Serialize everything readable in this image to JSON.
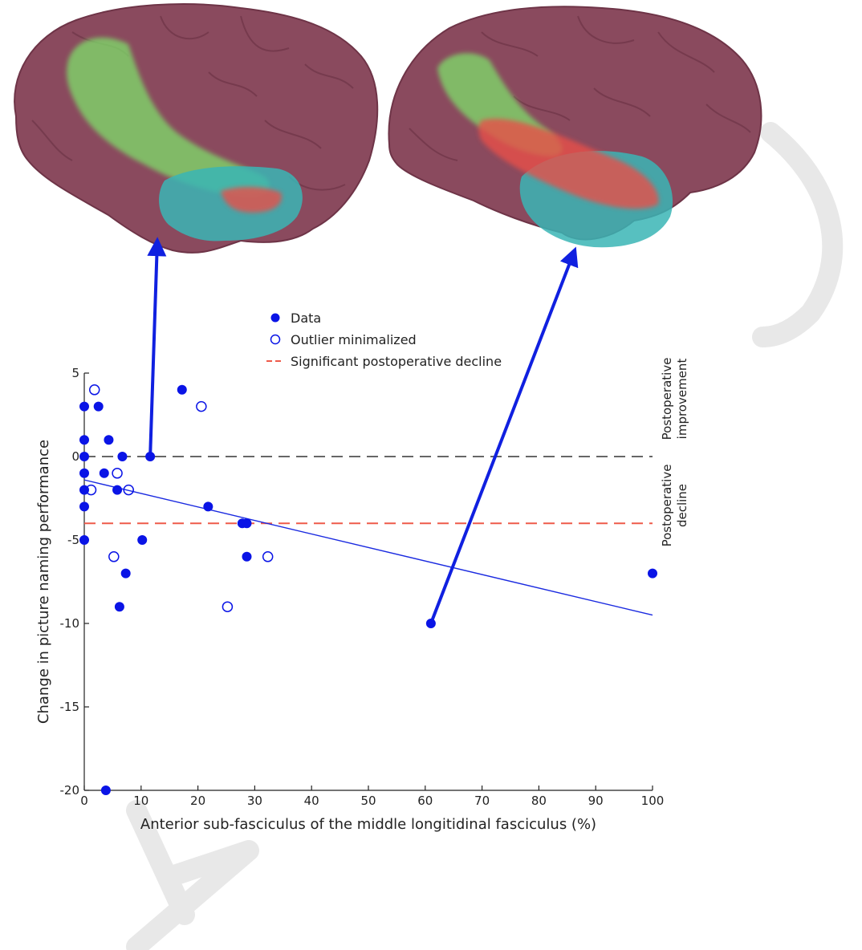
{
  "colors": {
    "data": "#0a14e6",
    "regression": "#1a2ae0",
    "zero_line": "#666666",
    "decline_line": "#ee5a4a",
    "cortex": "#8a4a5e",
    "cortex_dark": "#6e3447",
    "tract_green": "#7ee06a",
    "tract_red": "#e8504a",
    "temporal_teal": "#3ab5b5",
    "watermark": "#e8e8e8"
  },
  "legend": {
    "data": "Data",
    "outlier": "Outlier minimalized",
    "decline": "Significant postoperative decline"
  },
  "annotations": {
    "improvement_line1": "Postoperative",
    "improvement_line2": "improvement",
    "decline_line1": "Postoperative",
    "decline_line2": "decline"
  },
  "chart_data": {
    "type": "scatter",
    "xlabel": "Anterior sub-fasciculus of the middle longitidinal fasciculus (%)",
    "ylabel": "Change in picture naming performance",
    "xlim": [
      0,
      100
    ],
    "ylim": [
      -20,
      5
    ],
    "xticks": [
      0,
      10,
      20,
      30,
      40,
      50,
      60,
      70,
      80,
      90,
      100
    ],
    "yticks": [
      5,
      0,
      -5,
      -10,
      -15,
      -20
    ],
    "series": [
      {
        "name": "Data",
        "marker": "filled",
        "points": [
          {
            "x": 0,
            "y": 3
          },
          {
            "x": 0,
            "y": 1
          },
          {
            "x": 0,
            "y": 0
          },
          {
            "x": 0,
            "y": -1
          },
          {
            "x": 0,
            "y": -2
          },
          {
            "x": 0,
            "y": -3
          },
          {
            "x": 0,
            "y": -5
          },
          {
            "x": 2.5,
            "y": 3
          },
          {
            "x": 3.5,
            "y": -1
          },
          {
            "x": 4.3,
            "y": 1
          },
          {
            "x": 5.8,
            "y": -2
          },
          {
            "x": 6.2,
            "y": -9
          },
          {
            "x": 6.7,
            "y": 0
          },
          {
            "x": 7.3,
            "y": -7
          },
          {
            "x": 10.2,
            "y": -5
          },
          {
            "x": 11.6,
            "y": 0
          },
          {
            "x": 17.2,
            "y": 4
          },
          {
            "x": 21.8,
            "y": -3
          },
          {
            "x": 27.8,
            "y": -4
          },
          {
            "x": 28.6,
            "y": -4
          },
          {
            "x": 28.6,
            "y": -6
          },
          {
            "x": 61,
            "y": -10
          },
          {
            "x": 100,
            "y": -7
          },
          {
            "x": 3.8,
            "y": -20
          }
        ]
      },
      {
        "name": "Outlier minimalized",
        "marker": "open",
        "points": [
          {
            "x": 1.8,
            "y": 4
          },
          {
            "x": 1.2,
            "y": -2
          },
          {
            "x": 5.8,
            "y": -1
          },
          {
            "x": 7.8,
            "y": -2
          },
          {
            "x": 5.2,
            "y": -6
          },
          {
            "x": 20.6,
            "y": 3
          },
          {
            "x": 25.2,
            "y": -9
          },
          {
            "x": 32.3,
            "y": -6
          }
        ]
      }
    ],
    "regression_line": {
      "x": [
        0,
        100
      ],
      "y": [
        -1.4,
        -9.5
      ]
    },
    "reference_lines": [
      {
        "name": "zero",
        "y": 0,
        "style": "dashed"
      },
      {
        "name": "Significant postoperative decline",
        "y": -4,
        "style": "dashed"
      }
    ],
    "callouts": [
      {
        "from": {
          "x": 11.6,
          "y": 0
        },
        "to": "left brain image"
      },
      {
        "from": {
          "x": 61,
          "y": -10
        },
        "to": "right brain image"
      }
    ]
  }
}
